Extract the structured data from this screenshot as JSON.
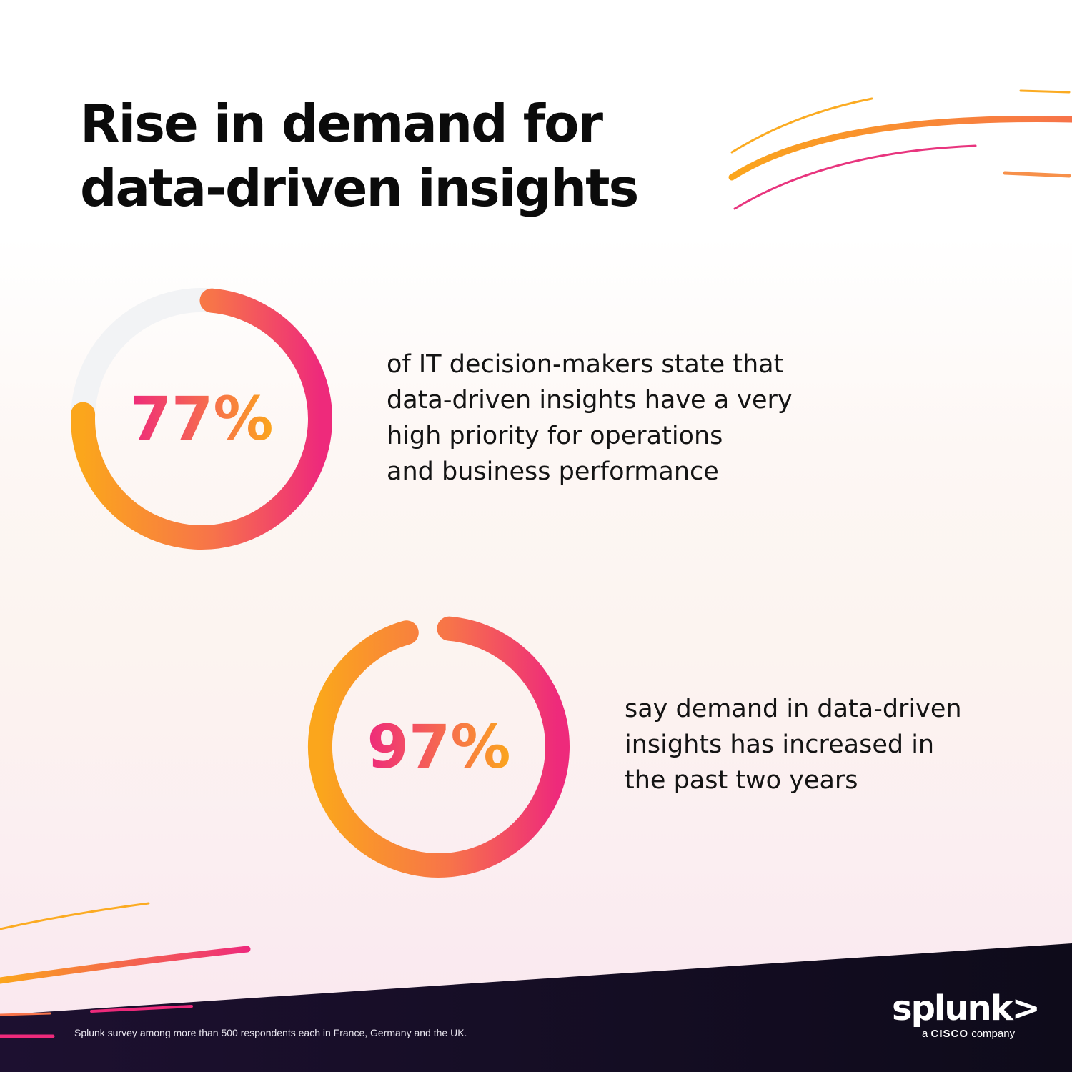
{
  "title": {
    "line1": "Rise in demand for",
    "line2": "data-driven insights"
  },
  "stats": [
    {
      "value_label": "77%",
      "percent": 77,
      "lines": [
        "of IT decision-makers state that",
        "data-driven insights have a very",
        "high priority for operations",
        "and business performance"
      ]
    },
    {
      "value_label": "97%",
      "percent": 97,
      "lines": [
        "say demand in data-driven",
        "insights has increased in",
        "the past two years"
      ]
    }
  ],
  "footer": {
    "note": "Splunk survey among more than 500 respondents each in France, Germany and the UK."
  },
  "logo": {
    "wordmark": "splunk>",
    "tagline_prefix": "a ",
    "tagline_brand": "CISCO",
    "tagline_suffix": " company"
  },
  "colors": {
    "orange": "#fba61c",
    "mid_orange": "#f7734a",
    "pink": "#ee2a7b",
    "track": "#f2f3f5",
    "footer_bg": "#130d22"
  }
}
